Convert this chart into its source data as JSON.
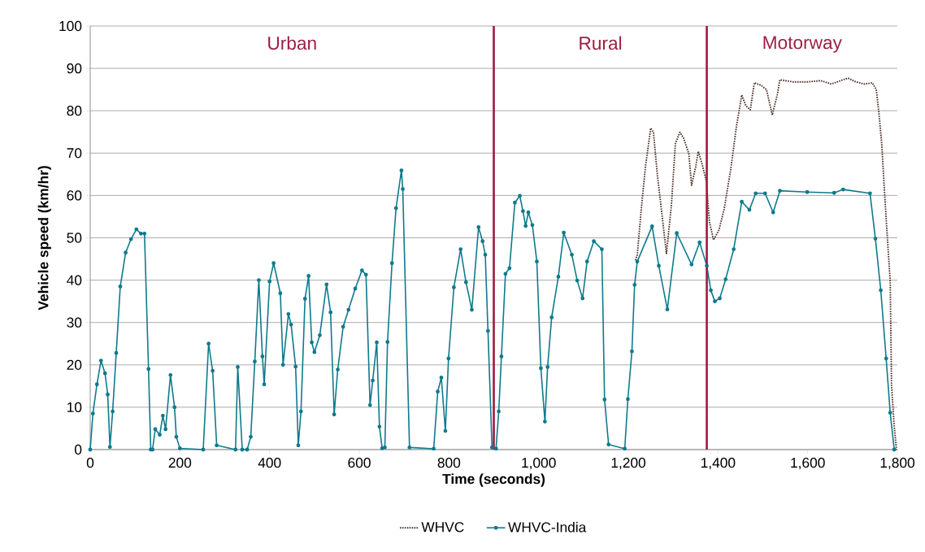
{
  "chart_data": {
    "type": "line",
    "xlabel": "Time (seconds)",
    "ylabel": "Vehicle speed (km/hr)",
    "xlim": [
      0,
      1800
    ],
    "ylim": [
      0,
      100
    ],
    "xticks": [
      0,
      200,
      400,
      600,
      800,
      {
        "value": 1000,
        "label": "1,000"
      },
      {
        "value": 1200,
        "label": "1,200"
      },
      {
        "value": 1400,
        "label": "1,400"
      },
      {
        "value": 1600,
        "label": "1,600"
      },
      {
        "value": 1800,
        "label": "1,800"
      }
    ],
    "yticks": [
      0,
      10,
      20,
      30,
      40,
      50,
      60,
      70,
      80,
      90,
      100
    ],
    "grid": "y",
    "legend": "bottom",
    "ref_lines": [
      {
        "axis": "x",
        "value": 900,
        "color": "#9e1f43"
      },
      {
        "axis": "x",
        "value": 1375,
        "color": "#9e1f43"
      }
    ],
    "annotations": [
      "Urban",
      "Rural",
      "Motorway"
    ],
    "series": [
      {
        "name": "WHVC",
        "color": "#4a2e25",
        "line_style": "dotted",
        "marker": "none",
        "x": [
          1216,
          1220,
          1229,
          1238,
          1250,
          1256,
          1265,
          1277,
          1285,
          1296,
          1305,
          1315,
          1323,
          1335,
          1341,
          1350,
          1356,
          1365,
          1374,
          1381,
          1390,
          1402,
          1414,
          1429,
          1441,
          1453,
          1462,
          1472,
          1481,
          1496,
          1508,
          1521,
          1532,
          1538,
          1568,
          1599,
          1629,
          1653,
          1668,
          1690,
          1708,
          1726,
          1744,
          1753,
          1759,
          1765,
          1771,
          1777,
          1784,
          1787,
          1793,
          1798
        ],
        "values": [
          44.7,
          46,
          56.9,
          66.6,
          75.9,
          74.9,
          64.6,
          53.7,
          46.3,
          57.6,
          72.3,
          74.9,
          73.6,
          69.8,
          62.4,
          66.6,
          70.4,
          67.2,
          63.3,
          53.7,
          49.5,
          51.8,
          56.9,
          66.6,
          76.2,
          83.7,
          81.2,
          80.2,
          86.6,
          86,
          85,
          79,
          83.7,
          87.3,
          86.8,
          86.8,
          87.1,
          86.3,
          86.9,
          87.7,
          86.8,
          86.3,
          86.6,
          85,
          79.3,
          72.3,
          61.4,
          51.2,
          39.7,
          15.1,
          5.5,
          0
        ]
      },
      {
        "name": "WHVC-India",
        "color": "#0f7a8c",
        "line_style": "solid",
        "marker": "circle",
        "x": [
          0,
          6,
          15,
          24,
          33,
          39,
          44,
          50,
          58,
          67,
          79,
          91,
          103,
          113,
          121,
          130,
          135,
          139,
          145,
          155,
          162,
          168,
          179,
          188,
          192,
          200,
          252,
          264,
          273,
          282,
          324,
          329,
          339,
          350,
          358,
          367,
          376,
          384,
          388,
          400,
          409,
          424,
          430,
          442,
          448,
          458,
          464,
          470,
          479,
          487,
          494,
          500,
          512,
          527,
          536,
          544,
          552,
          564,
          576,
          591,
          606,
          615,
          624,
          630,
          639,
          645,
          651,
          657,
          663,
          673,
          682,
          694,
          697,
          712,
          766,
          775,
          783,
          792,
          799,
          811,
          826,
          838,
          851,
          866,
          875,
          881,
          887,
          896,
          905,
          911,
          917,
          926,
          935,
          947,
          958,
          965,
          971,
          977,
          986,
          996,
          1005,
          1014,
          1020,
          1029,
          1044,
          1056,
          1074,
          1086,
          1098,
          1108,
          1123,
          1141,
          1147,
          1156,
          1192,
          1199,
          1208,
          1214,
          1220,
          1253,
          1268,
          1287,
          1308,
          1341,
          1359,
          1375,
          1384,
          1393,
          1404,
          1417,
          1435,
          1453,
          1470,
          1484,
          1505,
          1523,
          1538,
          1599,
          1659,
          1679,
          1739,
          1751,
          1763,
          1775,
          1784,
          1793
        ],
        "values": [
          0,
          8.5,
          15.4,
          21,
          18,
          13,
          0.6,
          9,
          22.8,
          38.5,
          46.5,
          49.7,
          52,
          51,
          51,
          19,
          0,
          0,
          4.8,
          3.5,
          8,
          4.8,
          17.6,
          10,
          3,
          0.3,
          0,
          25,
          18.6,
          1,
          0,
          19.5,
          0,
          0,
          3,
          20.8,
          40,
          22,
          15.4,
          39.7,
          44,
          36.9,
          20,
          32,
          29.5,
          19.6,
          1,
          9,
          35.6,
          41,
          25.3,
          23,
          27,
          39,
          32.4,
          8.3,
          18.9,
          29,
          33,
          38,
          42.3,
          41.3,
          10.5,
          16.3,
          25.3,
          5.4,
          0.3,
          0.5,
          25.4,
          44,
          57,
          65.9,
          61.5,
          0.5,
          0.2,
          13.7,
          17,
          4.4,
          21.5,
          38.3,
          47.3,
          39.5,
          33,
          52.5,
          49.2,
          46,
          28,
          0.5,
          0.2,
          9,
          22,
          41.5,
          42.8,
          58.3,
          59.9,
          56.3,
          52.8,
          56,
          53,
          44.4,
          19.2,
          6.6,
          19.5,
          31.2,
          40.8,
          51.2,
          46,
          39.9,
          35.7,
          44.4,
          49.2,
          47.3,
          11.8,
          1.2,
          0.2,
          11.9,
          23.2,
          38.9,
          44.4,
          52.7,
          43.4,
          33.1,
          51.1,
          43.7,
          48.9,
          43.4,
          37.6,
          35,
          35.7,
          40.2,
          47.3,
          58.5,
          56.6,
          60.5,
          60.5,
          56,
          61.1,
          60.8,
          60.6,
          61.4,
          60.5,
          49.8,
          37.6,
          21.5,
          8.7,
          0
        ]
      }
    ]
  }
}
